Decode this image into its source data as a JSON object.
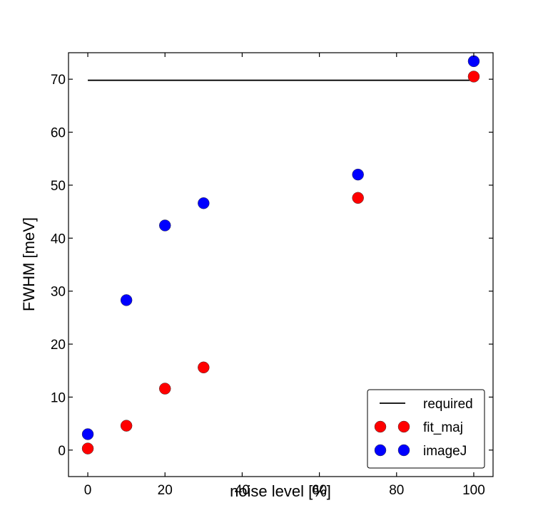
{
  "chart_data": {
    "type": "scatter",
    "title": "",
    "xlabel": "noise level [%]",
    "ylabel": "FWHM [meV]",
    "xlim": [
      -5,
      105
    ],
    "ylim": [
      -5,
      75
    ],
    "xticks": [
      0,
      20,
      40,
      60,
      80,
      100
    ],
    "yticks": [
      0,
      10,
      20,
      30,
      40,
      50,
      60,
      70
    ],
    "grid": false,
    "legend_position": "lower right",
    "series": [
      {
        "name": "required",
        "kind": "line",
        "color": "#000000",
        "x": [
          0,
          100
        ],
        "y": [
          69.8,
          69.8
        ]
      },
      {
        "name": "fit_maj",
        "kind": "marker",
        "color": "#ff0000",
        "x": [
          0,
          10,
          20,
          30,
          70,
          100
        ],
        "y": [
          0.3,
          4.6,
          11.6,
          15.6,
          47.6,
          70.5
        ]
      },
      {
        "name": "imageJ",
        "kind": "marker",
        "color": "#0000ff",
        "x": [
          0,
          10,
          20,
          30,
          70,
          100
        ],
        "y": [
          3.0,
          28.3,
          42.4,
          46.6,
          52.0,
          73.4
        ]
      }
    ]
  }
}
